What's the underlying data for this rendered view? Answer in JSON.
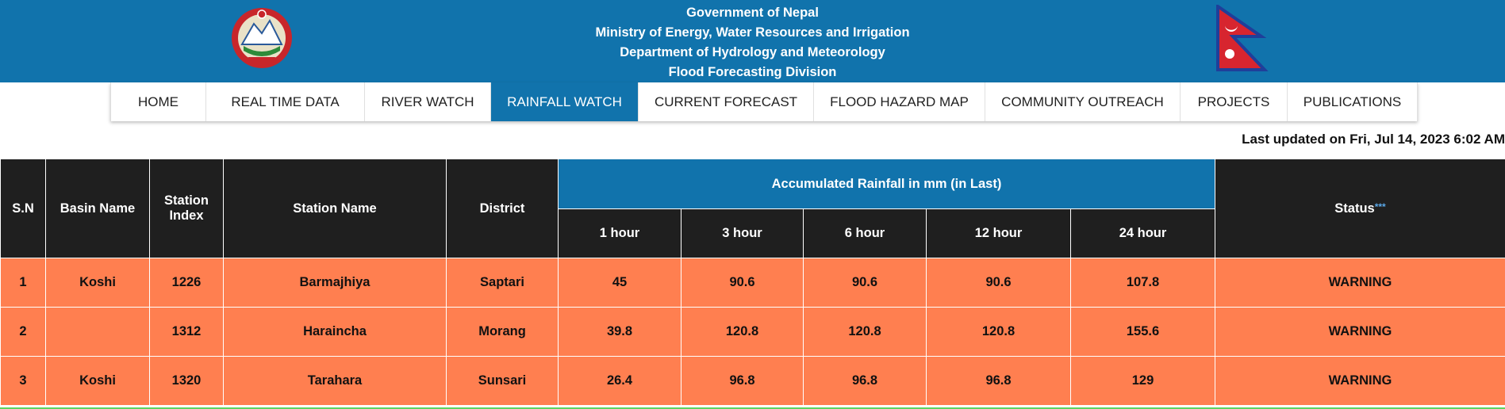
{
  "header": {
    "line1": "Government of Nepal",
    "line2": "Ministry of Energy, Water Resources and Irrigation",
    "line3": "Department of Hydrology and Meteorology",
    "line4": "Flood Forecasting Division"
  },
  "colors": {
    "header_bg": "#1173ac",
    "row_warning": "#ff7f50",
    "table_head": "#1f1f1f"
  },
  "nav": {
    "items": [
      {
        "label": "HOME"
      },
      {
        "label": "REAL TIME DATA"
      },
      {
        "label": "RIVER WATCH"
      },
      {
        "label": "RAINFALL WATCH"
      },
      {
        "label": "CURRENT FORECAST"
      },
      {
        "label": "FLOOD HAZARD MAP"
      },
      {
        "label": "COMMUNITY OUTREACH"
      },
      {
        "label": "PROJECTS"
      },
      {
        "label": "PUBLICATIONS"
      }
    ],
    "active": "RAINFALL WATCH"
  },
  "last_updated": "Last updated on Fri, Jul 14, 2023 6:02 AM",
  "table": {
    "headers": {
      "sn": "S.N",
      "basin": "Basin Name",
      "station_index": "Station Index",
      "station_name": "Station Name",
      "district": "District",
      "accumulated": "Accumulated Rainfall in mm (in Last)",
      "h1": "1 hour",
      "h3": "3 hour",
      "h6": "6 hour",
      "h12": "12 hour",
      "h24": "24 hour",
      "status": "Status",
      "status_mark": "***"
    },
    "rows": [
      {
        "sn": "1",
        "basin": "Koshi",
        "index": "1226",
        "name": "Barmajhiya",
        "district": "Saptari",
        "h1": "45",
        "h3": "90.6",
        "h6": "90.6",
        "h12": "90.6",
        "h24": "107.8",
        "status": "WARNING"
      },
      {
        "sn": "2",
        "basin": "",
        "index": "1312",
        "name": "Haraincha",
        "district": "Morang",
        "h1": "39.8",
        "h3": "120.8",
        "h6": "120.8",
        "h12": "120.8",
        "h24": "155.6",
        "status": "WARNING"
      },
      {
        "sn": "3",
        "basin": "Koshi",
        "index": "1320",
        "name": "Tarahara",
        "district": "Sunsari",
        "h1": "26.4",
        "h3": "96.8",
        "h6": "96.8",
        "h12": "96.8",
        "h24": "129",
        "status": "WARNING"
      }
    ]
  }
}
